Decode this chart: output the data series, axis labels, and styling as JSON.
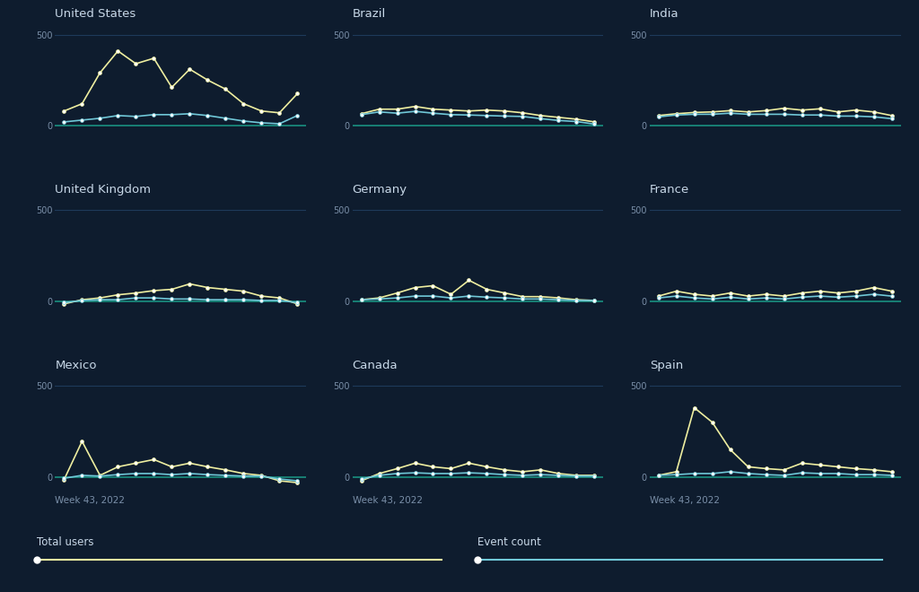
{
  "background_color": "#0e1c2e",
  "title_color": "#c8d8e8",
  "tick_color": "#7a8fa8",
  "line_color_users": "#eeeea0",
  "line_color_events": "#70c8d8",
  "grid_color": "#1e3a5a",
  "baseline_color": "#1a9080",
  "countries": [
    "United States",
    "Brazil",
    "India",
    "United Kingdom",
    "Germany",
    "France",
    "Mexico",
    "Canada",
    "Spain"
  ],
  "ncols": 3,
  "nrows": 3,
  "xlabel_bottom": "Week 43, 2022",
  "legend_users": "Total users",
  "legend_events": "Event count",
  "data": {
    "United States": {
      "users": [
        80,
        120,
        290,
        410,
        340,
        370,
        210,
        310,
        250,
        200,
        120,
        80,
        70,
        175
      ],
      "events": [
        20,
        30,
        40,
        55,
        50,
        60,
        60,
        65,
        55,
        40,
        25,
        15,
        10,
        55
      ]
    },
    "Brazil": {
      "users": [
        65,
        90,
        90,
        105,
        90,
        85,
        80,
        85,
        80,
        70,
        55,
        45,
        35,
        20
      ],
      "events": [
        60,
        75,
        68,
        78,
        68,
        60,
        58,
        55,
        52,
        50,
        38,
        28,
        22,
        8
      ]
    },
    "India": {
      "users": [
        55,
        65,
        72,
        75,
        82,
        75,
        82,
        95,
        85,
        92,
        75,
        85,
        75,
        55
      ],
      "events": [
        48,
        58,
        62,
        62,
        68,
        62,
        62,
        62,
        58,
        58,
        52,
        52,
        48,
        38
      ]
    },
    "United Kingdom": {
      "users": [
        -15,
        8,
        18,
        35,
        45,
        58,
        65,
        95,
        75,
        65,
        55,
        28,
        18,
        -15
      ],
      "events": [
        -8,
        4,
        8,
        8,
        18,
        18,
        12,
        12,
        8,
        8,
        8,
        4,
        4,
        -8
      ]
    },
    "Germany": {
      "users": [
        8,
        18,
        45,
        75,
        85,
        38,
        115,
        65,
        45,
        25,
        25,
        18,
        8,
        4
      ],
      "events": [
        8,
        12,
        18,
        28,
        28,
        18,
        28,
        22,
        18,
        12,
        12,
        8,
        4,
        4
      ]
    },
    "France": {
      "users": [
        28,
        55,
        38,
        28,
        45,
        28,
        38,
        28,
        45,
        55,
        45,
        55,
        75,
        55
      ],
      "events": [
        18,
        28,
        18,
        12,
        22,
        12,
        18,
        12,
        22,
        28,
        22,
        28,
        38,
        28
      ]
    },
    "Mexico": {
      "users": [
        -15,
        195,
        8,
        55,
        75,
        95,
        55,
        75,
        55,
        38,
        18,
        8,
        -22,
        -32
      ],
      "events": [
        -8,
        8,
        4,
        12,
        18,
        18,
        12,
        18,
        12,
        8,
        4,
        4,
        -12,
        -22
      ]
    },
    "Canada": {
      "users": [
        -22,
        18,
        45,
        75,
        55,
        45,
        75,
        55,
        38,
        28,
        38,
        18,
        8,
        8
      ],
      "events": [
        -12,
        8,
        18,
        22,
        18,
        18,
        22,
        18,
        12,
        8,
        12,
        8,
        4,
        4
      ]
    },
    "Spain": {
      "users": [
        8,
        28,
        380,
        300,
        150,
        55,
        45,
        38,
        75,
        65,
        55,
        45,
        38,
        28
      ],
      "events": [
        8,
        12,
        18,
        18,
        28,
        18,
        12,
        8,
        22,
        18,
        18,
        12,
        12,
        8
      ]
    }
  }
}
